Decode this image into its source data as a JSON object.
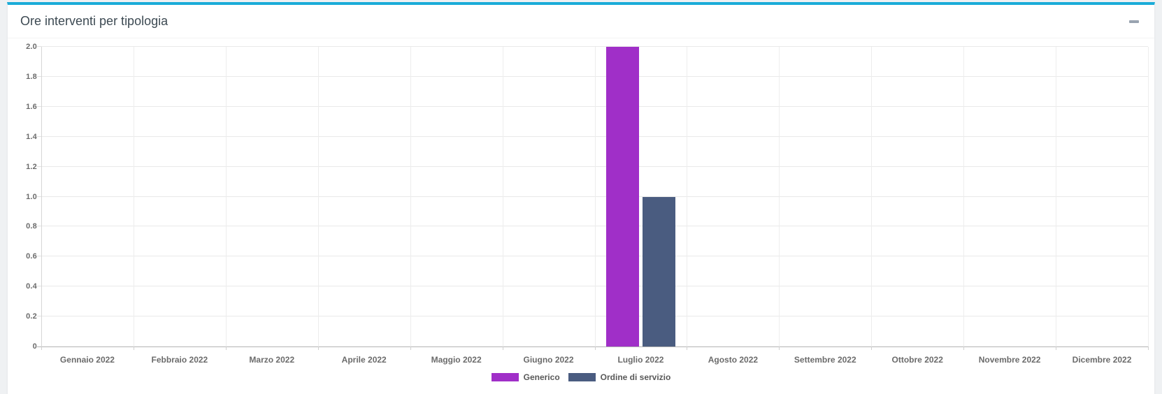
{
  "card": {
    "title": "Ore interventi per tipologia",
    "accent_color": "#1aacd8",
    "collapse_icon": "minus-icon"
  },
  "chart_data": {
    "type": "bar",
    "title": "Ore interventi per tipologia",
    "categories": [
      "Gennaio 2022",
      "Febbraio 2022",
      "Marzo 2022",
      "Aprile 2022",
      "Maggio 2022",
      "Giugno 2022",
      "Luglio 2022",
      "Agosto 2022",
      "Settembre 2022",
      "Ottobre 2022",
      "Novembre 2022",
      "Dicembre 2022"
    ],
    "series": [
      {
        "name": "Generico",
        "color": "#a02fc8",
        "values": [
          0,
          0,
          0,
          0,
          0,
          0,
          2,
          0,
          0,
          0,
          0,
          0
        ]
      },
      {
        "name": "Ordine di servizio",
        "color": "#4a5c80",
        "values": [
          0,
          0,
          0,
          0,
          0,
          0,
          1,
          0,
          0,
          0,
          0,
          0
        ]
      }
    ],
    "ylim": [
      0,
      2
    ],
    "ytick_step": 0.2,
    "ytick_labels": [
      "0",
      "0.2",
      "0.4",
      "0.6",
      "0.8",
      "1.0",
      "1.2",
      "1.4",
      "1.6",
      "1.8",
      "2.0"
    ],
    "xlabel": "",
    "ylabel": "",
    "grid": true,
    "legend_position": "bottom"
  }
}
